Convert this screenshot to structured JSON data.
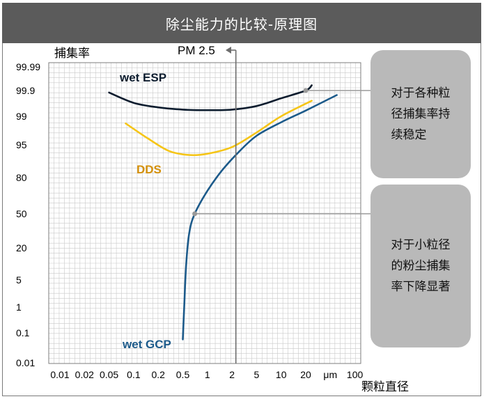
{
  "header": {
    "title": "除尘能力的比较-原理图"
  },
  "annotations": {
    "note_stable": "对于各种粒\n径捕集率持\n续稳定",
    "note_drop": "对于小粒径\n的粉尘捕集\n率下降显著"
  },
  "chart_data": {
    "type": "line",
    "title": "除尘能力的比较-原理图",
    "xlabel": "颗粒直径",
    "ylabel": "捕集率",
    "x_unit": "μm",
    "x_tick_labels": [
      "0.01",
      "0.02",
      "0.05",
      "0.1",
      "0.2",
      "0.5",
      "1",
      "2",
      "5",
      "10",
      "20",
      "μm",
      "100"
    ],
    "x_ticks": [
      0.01,
      0.02,
      0.05,
      0.1,
      0.2,
      0.5,
      1,
      2,
      5,
      10,
      20,
      50,
      100
    ],
    "y_tick_labels": [
      "0.01",
      "0.1",
      "1",
      "5",
      "20",
      "50",
      "80",
      "95",
      "99",
      "99.9",
      "99.99"
    ],
    "y_ticks": [
      0.01,
      0.1,
      1,
      5,
      20,
      50,
      80,
      95,
      99,
      99.9,
      99.99
    ],
    "x_scale": "log",
    "y_scale": "probability",
    "grid": true,
    "reference_line": {
      "label": "PM 2.5",
      "x": 2.5
    },
    "series": [
      {
        "name": "wet ESP",
        "color": "#0c1c2e",
        "label_color": "#0c1c2e",
        "x": [
          0.05,
          0.1,
          0.2,
          0.5,
          1,
          2,
          5,
          10,
          20,
          25
        ],
        "y": [
          99.88,
          99.7,
          99.55,
          99.45,
          99.42,
          99.45,
          99.6,
          99.8,
          99.9,
          99.94
        ]
      },
      {
        "name": "DDS",
        "color": "#f5c518",
        "label_color": "#d4900a",
        "x": [
          0.08,
          0.15,
          0.3,
          0.6,
          1,
          2,
          5,
          10,
          25
        ],
        "y": [
          98.5,
          96.5,
          93.5,
          92.3,
          92.7,
          94.5,
          97.5,
          99.0,
          99.75
        ]
      },
      {
        "name": "wet GCP",
        "color": "#1c5a8a",
        "label_color": "#1c5a8a",
        "x": [
          0.5,
          0.52,
          0.55,
          0.6,
          0.7,
          1,
          1.5,
          2.5,
          5,
          10,
          20,
          60
        ],
        "y": [
          0.06,
          1,
          10,
          30,
          50,
          72,
          85,
          93,
          97,
          98.6,
          99.4,
          99.85
        ]
      }
    ]
  }
}
